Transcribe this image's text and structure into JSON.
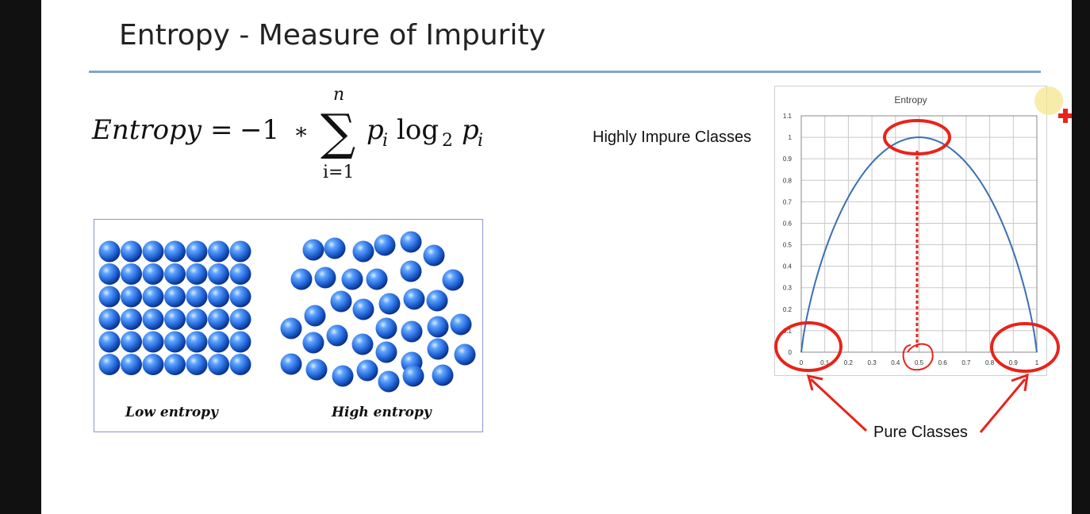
{
  "slide": {
    "title": "Entropy - Measure of Impurity",
    "formula": {
      "lhs": "Entropy",
      "equals": "=",
      "coefficient": "−1",
      "times": "∗",
      "sum_upper": "n",
      "sum_lower": "i=1",
      "term_p": "p",
      "term_i": "i",
      "log": "log",
      "base": "2"
    },
    "illustration": {
      "low_label": "Low entropy",
      "high_label": "High entropy"
    },
    "annotations": {
      "highly_impure": "Highly Impure Classes",
      "pure": "Pure Classes"
    },
    "colors": {
      "curve": "#3a6fb5",
      "annotation": "#e8231b",
      "rule": "#7fa5cf",
      "sphere": "#1d5fd0"
    }
  },
  "chart_data": {
    "type": "line",
    "title": "Entropy",
    "xlabel": "",
    "ylabel": "",
    "xlim": [
      0,
      1
    ],
    "ylim": [
      0,
      1.1
    ],
    "x_ticks": [
      "0",
      "0.1",
      "0.2",
      "0.3",
      "0.4",
      "0.5",
      "0.6",
      "0.7",
      "0.8",
      "0.9",
      "1"
    ],
    "y_ticks": [
      "0",
      "0.1",
      "0.2",
      "0.3",
      "0.4",
      "0.5",
      "0.6",
      "0.7",
      "0.8",
      "0.9",
      "1",
      "1.1"
    ],
    "grid": true,
    "series": [
      {
        "x": [
          0,
          0.1,
          0.2,
          0.3,
          0.4,
          0.5,
          0.6,
          0.7,
          0.8,
          0.9,
          1
        ],
        "y": [
          0,
          0.47,
          0.72,
          0.88,
          0.97,
          1.0,
          0.97,
          0.88,
          0.72,
          0.47,
          0
        ]
      }
    ]
  }
}
